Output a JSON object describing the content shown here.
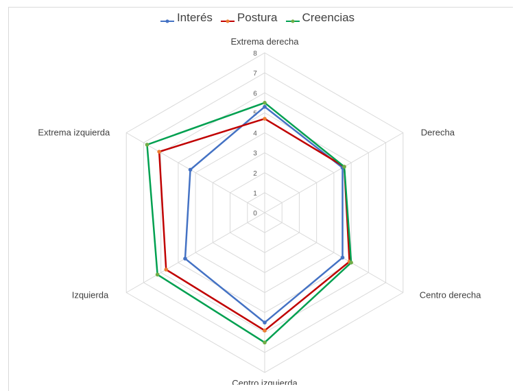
{
  "chart_data": {
    "type": "radar",
    "categories": [
      "Extrema derecha",
      "Derecha",
      "Centro derecha",
      "Centro izquierda",
      "Izquierda",
      "Extrema izquierda"
    ],
    "series": [
      {
        "name": "Interés",
        "color": "#4472c4",
        "values": [
          5.3,
          4.5,
          4.5,
          5.5,
          4.6,
          4.3
        ]
      },
      {
        "name": "Postura",
        "color": "#c00000",
        "marker_color": "#ed7d31",
        "values": [
          4.7,
          4.6,
          4.9,
          5.9,
          5.7,
          6.1
        ]
      },
      {
        "name": "Creencias",
        "color": "#00a050",
        "marker_color": "#70ad47",
        "values": [
          5.5,
          4.6,
          5.0,
          6.5,
          6.2,
          6.8
        ]
      }
    ],
    "ticks": [
      "0",
      "1",
      "2",
      "3",
      "4",
      "5",
      "6",
      "7",
      "8"
    ],
    "rlim": [
      0,
      8
    ],
    "grid": true,
    "legend_position": "top"
  }
}
